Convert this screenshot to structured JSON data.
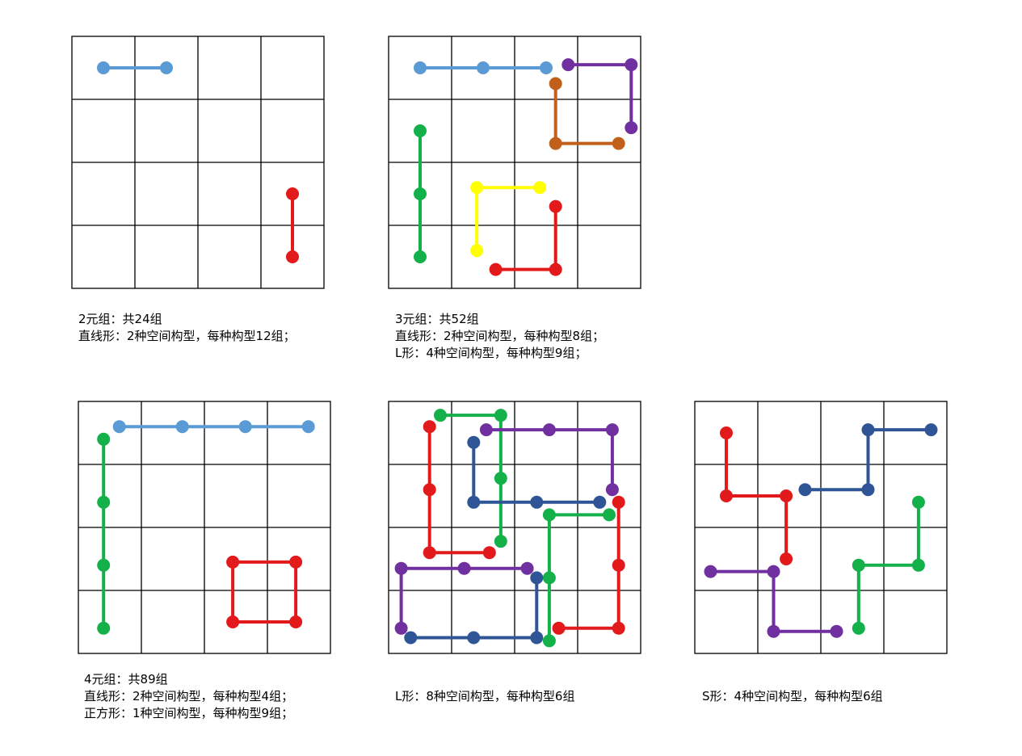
{
  "colors": {
    "light-blue": "#5b9bd5",
    "red": "#e31a1c",
    "green": "#14b14b",
    "purple": "#7030a0",
    "brown": "#c0601a",
    "yellow": "#ffff00",
    "navy": "#2f5597",
    "grid": "#000000"
  },
  "panels": [
    {
      "name": "panel-2-element",
      "paths": [
        {
          "color": "light-blue",
          "pts": [
            [
              0.5,
              0.5
            ],
            [
              1.5,
              0.5
            ]
          ]
        },
        {
          "color": "red",
          "pts": [
            [
              3.5,
              2.5
            ],
            [
              3.5,
              3.5
            ]
          ]
        }
      ],
      "caption": [
        "2元组：共24组",
        "直线形：2种空间构型，每种构型12组；"
      ]
    },
    {
      "name": "panel-3-element",
      "paths": [
        {
          "color": "light-blue",
          "pts": [
            [
              0.5,
              0.5
            ],
            [
              1.5,
              0.5
            ],
            [
              2.5,
              0.5
            ]
          ]
        },
        {
          "color": "purple",
          "pts": [
            [
              2.85,
              0.45
            ],
            [
              3.85,
              0.45
            ],
            [
              3.85,
              1.45
            ]
          ]
        },
        {
          "color": "brown",
          "pts": [
            [
              2.65,
              0.75
            ],
            [
              2.65,
              1.7
            ],
            [
              3.65,
              1.7
            ]
          ]
        },
        {
          "color": "green",
          "pts": [
            [
              0.5,
              1.5
            ],
            [
              0.5,
              2.5
            ],
            [
              0.5,
              3.5
            ]
          ]
        },
        {
          "color": "yellow",
          "pts": [
            [
              1.4,
              3.4
            ],
            [
              1.4,
              2.4
            ],
            [
              2.4,
              2.4
            ]
          ]
        },
        {
          "color": "red",
          "pts": [
            [
              2.65,
              2.7
            ],
            [
              2.65,
              3.7
            ],
            [
              1.7,
              3.7
            ]
          ]
        }
      ],
      "caption": [
        "3元组：共52组",
        "直线形：2种空间构型，每种构型8组；",
        "L形：4种空间构型，每种构型9组；"
      ]
    },
    {
      "name": "panel-4-element-line-square",
      "paths": [
        {
          "color": "light-blue",
          "pts": [
            [
              0.65,
              0.4
            ],
            [
              1.65,
              0.4
            ],
            [
              2.65,
              0.4
            ],
            [
              3.65,
              0.4
            ]
          ]
        },
        {
          "color": "green",
          "pts": [
            [
              0.4,
              0.6
            ],
            [
              0.4,
              1.6
            ],
            [
              0.4,
              2.6
            ],
            [
              0.4,
              3.6
            ]
          ]
        },
        {
          "color": "red",
          "pts": [
            [
              2.45,
              2.55
            ],
            [
              3.45,
              2.55
            ],
            [
              3.45,
              3.5
            ],
            [
              2.45,
              3.5
            ],
            [
              2.45,
              2.55
            ]
          ],
          "closed": true
        }
      ],
      "caption": [
        "4元组：共89组",
        "直线形：2种空间构型，每种构型4组；",
        "正方形：1种空间构型，每种构型9组；"
      ]
    },
    {
      "name": "panel-4-element-l-shape",
      "paths": [
        {
          "color": "green",
          "pts": [
            [
              0.82,
              0.22
            ],
            [
              1.78,
              0.22
            ],
            [
              1.78,
              1.22
            ],
            [
              1.78,
              2.22
            ]
          ]
        },
        {
          "color": "red",
          "pts": [
            [
              0.65,
              0.4
            ],
            [
              0.65,
              1.4
            ],
            [
              0.65,
              2.4
            ],
            [
              1.6,
              2.4
            ]
          ]
        },
        {
          "color": "purple",
          "pts": [
            [
              1.55,
              0.45
            ],
            [
              2.55,
              0.45
            ],
            [
              3.55,
              0.45
            ],
            [
              3.55,
              1.4
            ]
          ]
        },
        {
          "color": "navy",
          "pts": [
            [
              1.35,
              0.65
            ],
            [
              1.35,
              1.6
            ],
            [
              2.35,
              1.6
            ],
            [
              3.35,
              1.6
            ]
          ]
        },
        {
          "color": "green",
          "pts": [
            [
              3.5,
              1.8
            ],
            [
              2.55,
              1.8
            ],
            [
              2.55,
              2.8
            ],
            [
              2.55,
              3.8
            ]
          ]
        },
        {
          "color": "red",
          "pts": [
            [
              3.65,
              1.6
            ],
            [
              3.65,
              2.6
            ],
            [
              3.65,
              3.6
            ],
            [
              2.7,
              3.6
            ]
          ]
        },
        {
          "color": "purple",
          "pts": [
            [
              2.2,
              2.65
            ],
            [
              1.2,
              2.65
            ],
            [
              0.2,
              2.65
            ],
            [
              0.2,
              3.6
            ]
          ]
        },
        {
          "color": "navy",
          "pts": [
            [
              2.35,
              2.8
            ],
            [
              2.35,
              3.75
            ],
            [
              1.35,
              3.75
            ],
            [
              0.35,
              3.75
            ]
          ]
        }
      ],
      "caption": [
        "L形：8种空间构型，每种构型6组"
      ]
    },
    {
      "name": "panel-4-element-s-shape",
      "paths": [
        {
          "color": "navy",
          "pts": [
            [
              3.75,
              0.45
            ],
            [
              2.75,
              0.45
            ],
            [
              2.75,
              1.4
            ],
            [
              1.75,
              1.4
            ]
          ]
        },
        {
          "color": "red",
          "pts": [
            [
              0.5,
              0.5
            ],
            [
              0.5,
              1.5
            ],
            [
              1.45,
              1.5
            ],
            [
              1.45,
              2.5
            ]
          ]
        },
        {
          "color": "green",
          "pts": [
            [
              3.55,
              1.6
            ],
            [
              3.55,
              2.6
            ],
            [
              2.6,
              2.6
            ],
            [
              2.6,
              3.6
            ]
          ]
        },
        {
          "color": "purple",
          "pts": [
            [
              0.25,
              2.7
            ],
            [
              1.25,
              2.7
            ],
            [
              1.25,
              3.65
            ],
            [
              2.25,
              3.65
            ]
          ]
        }
      ],
      "caption": [
        "S形：4种空间构型，每种构型6组"
      ]
    }
  ]
}
